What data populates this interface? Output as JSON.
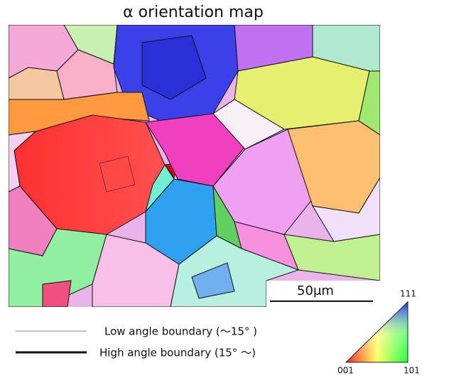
{
  "title": "α orientation map",
  "scale_bar": {
    "label": "50μm"
  },
  "legend": [
    {
      "label": "Low angle boundary (～15°  )"
    },
    {
      "label": "High angle boundary (15°  ～)"
    }
  ],
  "ipf_key": {
    "corners": [
      "001",
      "101",
      "111"
    ]
  }
}
